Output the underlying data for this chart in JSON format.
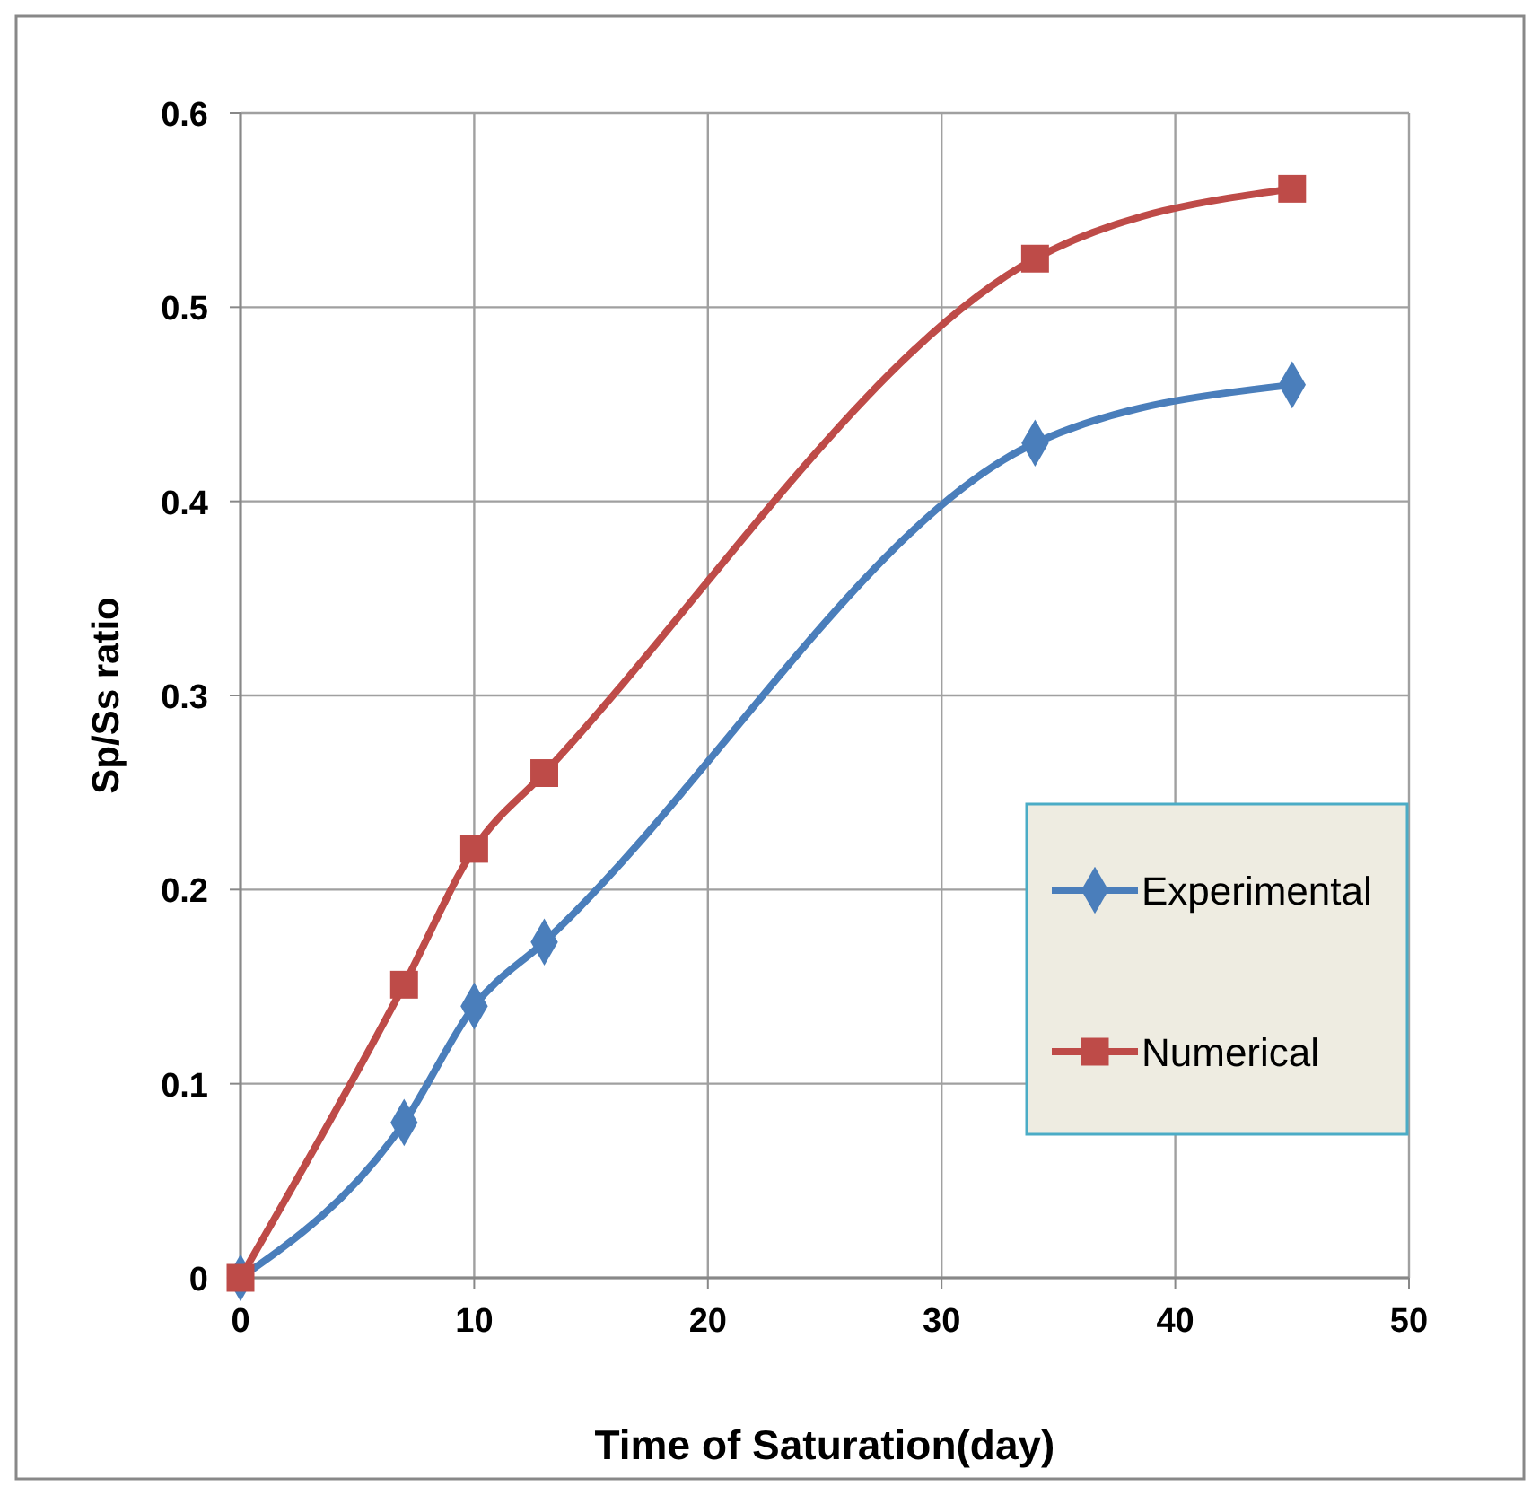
{
  "chart_data": {
    "type": "line",
    "xlabel": "Time of Saturation(day)",
    "ylabel": "Sp/Ss ratio",
    "xlim": [
      0,
      50
    ],
    "xticks": [
      0,
      10,
      20,
      30,
      40,
      50
    ],
    "ylim": [
      0,
      0.6
    ],
    "yticks": [
      0,
      0.1,
      0.2,
      0.3,
      0.4,
      0.5,
      0.6
    ],
    "grid": true,
    "legend": "right",
    "series": [
      {
        "name": "Experimental",
        "color": "#4a7ebb",
        "marker": "diamond",
        "x": [
          0,
          7,
          10,
          13,
          34,
          45
        ],
        "values": [
          0,
          0.08,
          0.14,
          0.173,
          0.43,
          0.46
        ]
      },
      {
        "name": "Numerical",
        "color": "#be4b48",
        "marker": "square",
        "x": [
          0,
          7,
          10,
          13,
          34,
          45
        ],
        "values": [
          0,
          0.151,
          0.221,
          0.26,
          0.525,
          0.561
        ]
      }
    ]
  }
}
